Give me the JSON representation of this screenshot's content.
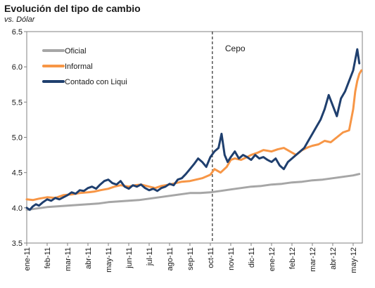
{
  "chart_data": {
    "type": "line",
    "title": "Evolución del tipo de cambio",
    "subtitle": "vs. Dólar",
    "xlabel": "",
    "ylabel": "",
    "ylim": [
      3.5,
      6.5
    ],
    "yticks": [
      "3.5",
      "4.0",
      "4.5",
      "5.0",
      "5.5",
      "6.0",
      "6.5"
    ],
    "x_tick_labels": [
      "ene-11",
      "feb-11",
      "mar-11",
      "abr-11",
      "may-11",
      "jun-11",
      "jul-11",
      "ago-11",
      "sep-11",
      "oct-11",
      "nov-11",
      "dic-11",
      "ene-12",
      "feb-12",
      "mar-12",
      "abr-12",
      "may-12"
    ],
    "grid": false,
    "legend_position": "top-left",
    "annotation": {
      "label": "Cepo",
      "x": 9.1
    },
    "series": [
      {
        "name": "Oficial",
        "color": "#a6a6a6",
        "points": [
          [
            0,
            3.97
          ],
          [
            0.5,
            3.99
          ],
          [
            1,
            4.01
          ],
          [
            1.5,
            4.02
          ],
          [
            2,
            4.03
          ],
          [
            2.5,
            4.04
          ],
          [
            3,
            4.05
          ],
          [
            3.5,
            4.06
          ],
          [
            4,
            4.08
          ],
          [
            4.5,
            4.09
          ],
          [
            5,
            4.1
          ],
          [
            5.5,
            4.11
          ],
          [
            6,
            4.13
          ],
          [
            6.5,
            4.15
          ],
          [
            7,
            4.17
          ],
          [
            7.5,
            4.19
          ],
          [
            8,
            4.21
          ],
          [
            8.5,
            4.21
          ],
          [
            9,
            4.22
          ],
          [
            9.5,
            4.24
          ],
          [
            10,
            4.26
          ],
          [
            10.5,
            4.28
          ],
          [
            11,
            4.3
          ],
          [
            11.5,
            4.31
          ],
          [
            12,
            4.33
          ],
          [
            12.5,
            4.34
          ],
          [
            13,
            4.36
          ],
          [
            13.5,
            4.37
          ],
          [
            14,
            4.39
          ],
          [
            14.5,
            4.4
          ],
          [
            15,
            4.42
          ],
          [
            15.5,
            4.44
          ],
          [
            16,
            4.46
          ],
          [
            16.3,
            4.48
          ]
        ]
      },
      {
        "name": "Informal",
        "color": "#f79646",
        "points": [
          [
            0,
            4.12
          ],
          [
            0.3,
            4.11
          ],
          [
            0.6,
            4.13
          ],
          [
            1,
            4.15
          ],
          [
            1.4,
            4.14
          ],
          [
            1.8,
            4.18
          ],
          [
            2.2,
            4.19
          ],
          [
            2.6,
            4.21
          ],
          [
            3,
            4.22
          ],
          [
            3.3,
            4.23
          ],
          [
            3.6,
            4.25
          ],
          [
            4,
            4.27
          ],
          [
            4.3,
            4.3
          ],
          [
            4.6,
            4.32
          ],
          [
            5,
            4.3
          ],
          [
            5.3,
            4.32
          ],
          [
            5.6,
            4.33
          ],
          [
            6,
            4.3
          ],
          [
            6.3,
            4.28
          ],
          [
            6.6,
            4.31
          ],
          [
            7,
            4.33
          ],
          [
            7.3,
            4.35
          ],
          [
            7.6,
            4.37
          ],
          [
            8,
            4.38
          ],
          [
            8.3,
            4.4
          ],
          [
            8.6,
            4.42
          ],
          [
            9,
            4.47
          ],
          [
            9.2,
            4.55
          ],
          [
            9.5,
            4.5
          ],
          [
            9.8,
            4.58
          ],
          [
            10,
            4.68
          ],
          [
            10.2,
            4.7
          ],
          [
            10.5,
            4.68
          ],
          [
            10.8,
            4.72
          ],
          [
            11,
            4.75
          ],
          [
            11.3,
            4.78
          ],
          [
            11.6,
            4.82
          ],
          [
            12,
            4.8
          ],
          [
            12.3,
            4.83
          ],
          [
            12.6,
            4.85
          ],
          [
            12.9,
            4.8
          ],
          [
            13.2,
            4.75
          ],
          [
            13.5,
            4.82
          ],
          [
            13.8,
            4.86
          ],
          [
            14,
            4.88
          ],
          [
            14.3,
            4.9
          ],
          [
            14.6,
            4.95
          ],
          [
            14.9,
            4.93
          ],
          [
            15.2,
            5.0
          ],
          [
            15.5,
            5.07
          ],
          [
            15.8,
            5.1
          ],
          [
            16,
            5.4
          ],
          [
            16.1,
            5.65
          ],
          [
            16.2,
            5.8
          ],
          [
            16.3,
            5.9
          ],
          [
            16.4,
            5.95
          ]
        ]
      },
      {
        "name": "Contado con Liqui",
        "color": "#1f3f6e",
        "points": [
          [
            0,
            4.0
          ],
          [
            0.15,
            3.97
          ],
          [
            0.3,
            4.02
          ],
          [
            0.45,
            4.05
          ],
          [
            0.6,
            4.03
          ],
          [
            0.8,
            4.08
          ],
          [
            1,
            4.12
          ],
          [
            1.2,
            4.1
          ],
          [
            1.4,
            4.14
          ],
          [
            1.6,
            4.12
          ],
          [
            1.8,
            4.15
          ],
          [
            2,
            4.18
          ],
          [
            2.2,
            4.22
          ],
          [
            2.4,
            4.2
          ],
          [
            2.6,
            4.25
          ],
          [
            2.8,
            4.24
          ],
          [
            3,
            4.28
          ],
          [
            3.2,
            4.3
          ],
          [
            3.4,
            4.27
          ],
          [
            3.6,
            4.33
          ],
          [
            3.8,
            4.38
          ],
          [
            4,
            4.4
          ],
          [
            4.2,
            4.35
          ],
          [
            4.4,
            4.33
          ],
          [
            4.6,
            4.38
          ],
          [
            4.8,
            4.3
          ],
          [
            5,
            4.27
          ],
          [
            5.2,
            4.32
          ],
          [
            5.4,
            4.3
          ],
          [
            5.6,
            4.33
          ],
          [
            5.8,
            4.28
          ],
          [
            6,
            4.25
          ],
          [
            6.2,
            4.27
          ],
          [
            6.4,
            4.24
          ],
          [
            6.6,
            4.28
          ],
          [
            6.8,
            4.3
          ],
          [
            7,
            4.34
          ],
          [
            7.2,
            4.32
          ],
          [
            7.4,
            4.4
          ],
          [
            7.6,
            4.42
          ],
          [
            7.8,
            4.48
          ],
          [
            8,
            4.55
          ],
          [
            8.2,
            4.62
          ],
          [
            8.4,
            4.7
          ],
          [
            8.6,
            4.65
          ],
          [
            8.8,
            4.58
          ],
          [
            9,
            4.72
          ],
          [
            9.2,
            4.8
          ],
          [
            9.4,
            4.85
          ],
          [
            9.55,
            5.05
          ],
          [
            9.7,
            4.75
          ],
          [
            9.85,
            4.65
          ],
          [
            10,
            4.72
          ],
          [
            10.2,
            4.8
          ],
          [
            10.4,
            4.7
          ],
          [
            10.6,
            4.75
          ],
          [
            10.8,
            4.72
          ],
          [
            11,
            4.68
          ],
          [
            11.2,
            4.75
          ],
          [
            11.4,
            4.7
          ],
          [
            11.6,
            4.72
          ],
          [
            11.8,
            4.68
          ],
          [
            12,
            4.65
          ],
          [
            12.2,
            4.7
          ],
          [
            12.4,
            4.6
          ],
          [
            12.6,
            4.55
          ],
          [
            12.8,
            4.65
          ],
          [
            13,
            4.7
          ],
          [
            13.2,
            4.75
          ],
          [
            13.4,
            4.8
          ],
          [
            13.6,
            4.85
          ],
          [
            13.8,
            4.95
          ],
          [
            14,
            5.05
          ],
          [
            14.2,
            5.15
          ],
          [
            14.4,
            5.25
          ],
          [
            14.6,
            5.4
          ],
          [
            14.8,
            5.6
          ],
          [
            15,
            5.45
          ],
          [
            15.2,
            5.3
          ],
          [
            15.4,
            5.55
          ],
          [
            15.6,
            5.65
          ],
          [
            15.8,
            5.8
          ],
          [
            16,
            5.95
          ],
          [
            16.1,
            6.1
          ],
          [
            16.2,
            6.25
          ],
          [
            16.3,
            6.05
          ]
        ]
      }
    ]
  }
}
